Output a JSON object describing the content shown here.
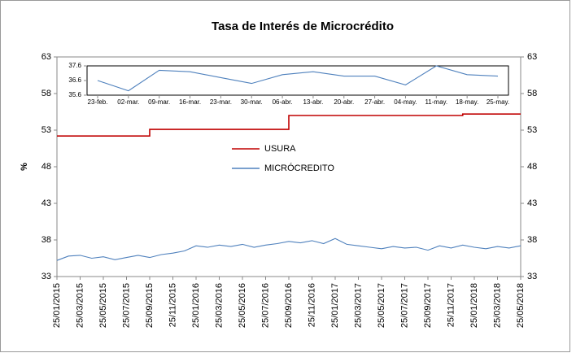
{
  "chart_data": [
    {
      "type": "line",
      "title": "Tasa de Interés de Microcrédito",
      "y_label": "%",
      "categories": [
        "25/01/2015",
        null,
        "25/03/2015",
        null,
        "25/05/2015",
        null,
        "25/07/2015",
        null,
        "25/09/2015",
        null,
        "25/11/2015",
        null,
        "25/01/2016",
        null,
        "25/03/2016",
        null,
        "25/05/2016",
        null,
        "25/07/2016",
        null,
        "25/09/2016",
        null,
        "25/11/2016",
        null,
        "25/01/2017",
        null,
        "25/03/2017",
        null,
        "25/05/2017",
        null,
        "25/07/2017",
        null,
        "25/09/2017",
        null,
        "25/11/2017",
        null,
        "25/01/2018",
        null,
        "25/03/2018",
        null,
        "25/05/2018"
      ],
      "series": [
        {
          "name": "USURA",
          "color": "#c00000",
          "step": true,
          "values": [
            52.2,
            52.2,
            52.2,
            52.2,
            52.2,
            52.2,
            52.2,
            52.2,
            53.1,
            53.1,
            53.1,
            53.1,
            53.1,
            53.1,
            53.1,
            53.1,
            53.1,
            53.1,
            53.1,
            53.1,
            55.0,
            55.0,
            55.0,
            55.0,
            55.0,
            55.0,
            55.0,
            55.0,
            55.0,
            55.0,
            55.0,
            55.0,
            55.0,
            55.0,
            55.0,
            55.2,
            55.2,
            55.2,
            55.2,
            55.2,
            55.2
          ]
        },
        {
          "name": "MICRÓCREDITO",
          "color": "#4f81bd",
          "values": [
            35.2,
            35.8,
            35.9,
            35.5,
            35.7,
            35.3,
            35.6,
            35.9,
            35.6,
            36.0,
            36.2,
            36.5,
            37.2,
            37.0,
            37.3,
            37.1,
            37.4,
            37.0,
            37.3,
            37.5,
            37.8,
            37.6,
            37.9,
            37.5,
            38.2,
            37.4,
            37.2,
            37.0,
            36.8,
            37.1,
            36.9,
            37.0,
            36.6,
            37.2,
            36.9,
            37.3,
            37.0,
            36.8,
            37.1,
            36.9,
            37.2
          ]
        }
      ],
      "ylim": [
        33,
        63
      ],
      "yticks": [
        33,
        38,
        43,
        48,
        53,
        58,
        63
      ],
      "y2lim": [
        33,
        63
      ],
      "y2ticks": [
        33,
        38,
        43,
        48,
        53,
        58,
        63
      ],
      "legend": "center",
      "grid": false
    },
    {
      "type": "line",
      "categories": [
        "23-feb.",
        "02-mar.",
        "09-mar.",
        "16-mar.",
        "23-mar.",
        "30-mar.",
        "06-abr.",
        "13-abr.",
        "20-abr.",
        "27-abr.",
        "04-may.",
        "11-may.",
        "18-may.",
        "25-may."
      ],
      "series": [
        {
          "color": "#4f81bd",
          "values": [
            36.6,
            35.9,
            37.3,
            37.2,
            36.8,
            36.4,
            37.0,
            37.2,
            36.9,
            36.9,
            36.3,
            37.6,
            37.0,
            36.9
          ]
        }
      ],
      "ylim": [
        35.6,
        37.6
      ],
      "yticks": [
        35.6,
        36.6,
        37.6
      ],
      "grid": false
    }
  ]
}
